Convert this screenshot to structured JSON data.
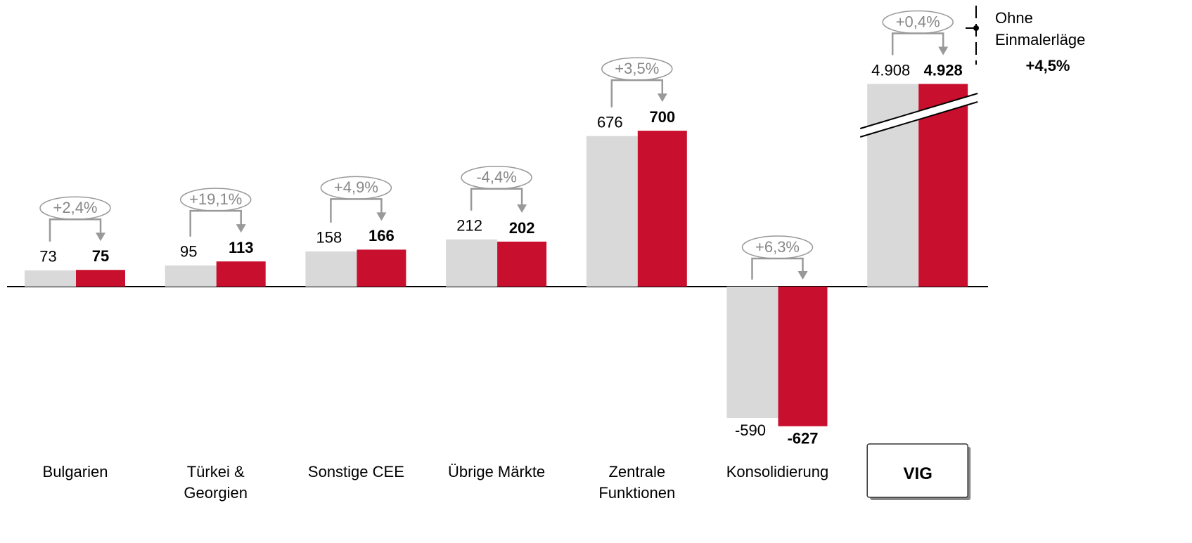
{
  "chart_data": {
    "type": "bar",
    "categories": [
      "Bulgarien",
      "Türkei &\nGeorgien",
      "Sonstige CEE",
      "Übrige Märkte",
      "Zentrale\nFunktionen",
      "Konsolidierung",
      "VIG"
    ],
    "series": [
      {
        "color": "#d9d9da",
        "values": [
          73,
          95,
          158,
          212,
          676,
          -590,
          4908
        ],
        "value_labels": [
          "73",
          "95",
          "158",
          "212",
          "676",
          "-590",
          "4.908"
        ]
      },
      {
        "color": "#c8102e",
        "values": [
          75,
          113,
          166,
          202,
          700,
          -627,
          4928
        ],
        "value_labels": [
          "75",
          "113",
          "166",
          "202",
          "700",
          "-627",
          "4.928"
        ]
      }
    ],
    "changes": [
      "+2,4%",
      "+19,1%",
      "+4,9%",
      "-4,4%",
      "+3,5%",
      "+6,3%",
      "+0,4%"
    ],
    "ylim": [
      -680,
      910
    ],
    "axis_break": true,
    "boxed_category_index": 6,
    "note": {
      "lines": [
        "Ohne",
        "Einmalerläge"
      ],
      "value": "+4,5%"
    }
  }
}
